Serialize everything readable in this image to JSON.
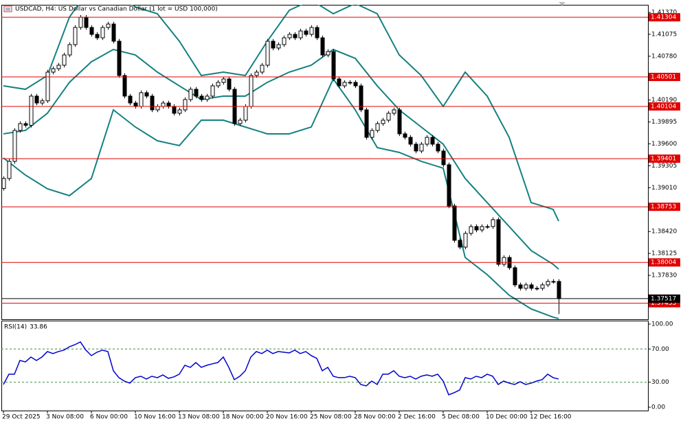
{
  "chart_data": [
    {
      "type": "candlestick",
      "title": "USDCAD, H4:  US Dollar vs Canadian Dollar (1 lot = USD 100,000)",
      "categories": [
        "29 Oct 2025",
        null,
        null,
        null,
        null,
        null,
        null,
        null,
        "3 Nov 08:00",
        null,
        null,
        null,
        null,
        null,
        null,
        null,
        "6 Nov 00:00",
        null,
        null,
        null,
        null,
        null,
        null,
        null,
        "10 Nov 16:00",
        null,
        null,
        null,
        null,
        null,
        null,
        null,
        "13 Nov 08:00",
        null,
        null,
        null,
        null,
        null,
        null,
        null,
        "18 Nov 00:00",
        null,
        null,
        null,
        null,
        null,
        null,
        null,
        "20 Nov 16:00",
        null,
        null,
        null,
        null,
        null,
        null,
        null,
        "25 Nov 08:00",
        null,
        null,
        null,
        null,
        null,
        null,
        null,
        "28 Nov 00:00",
        null,
        null,
        null,
        null,
        null,
        null,
        null,
        "2 Dec 16:00",
        null,
        null,
        null,
        null,
        null,
        null,
        null,
        "5 Dec 08:00",
        null,
        null,
        null,
        null,
        null,
        null,
        null,
        "10 Dec 00:00",
        null,
        null,
        null,
        null,
        null,
        null,
        null,
        "12 Dec 16:00",
        null,
        null,
        null,
        null,
        null
      ],
      "open": [
        1.39,
        1.39134,
        1.39365,
        1.39781,
        1.39873,
        1.3985,
        1.40243,
        1.4015,
        1.4018,
        1.40566,
        1.40612,
        1.40659,
        1.40797,
        1.40936,
        1.41167,
        1.41305,
        1.41167,
        1.41074,
        1.41028,
        1.41167,
        1.41213,
        1.40982,
        1.4052,
        1.40243,
        1.4015,
        1.40104,
        1.40289,
        1.40243,
        1.40058,
        1.40104,
        1.4015,
        1.40104,
        1.40012,
        1.40058,
        1.40197,
        1.40335,
        1.40243,
        1.40197,
        1.40243,
        1.40381,
        1.40428,
        1.40474,
        1.40335,
        1.39873,
        1.39919,
        1.40104,
        1.4052,
        1.40566,
        1.40659,
        1.40982,
        1.4089,
        1.40936,
        1.41028,
        1.41074,
        1.41028,
        1.4112,
        1.41074,
        1.41167,
        1.41028,
        1.40797,
        1.40843,
        1.40474,
        1.40381,
        1.40428,
        1.40428,
        1.40381,
        1.40058,
        1.39688,
        1.39781,
        1.39873,
        1.39919,
        1.40012,
        1.40058,
        1.39735,
        1.39688,
        1.39596,
        1.39504,
        1.39596,
        1.39688,
        1.39596,
        1.39504,
        1.39319,
        1.38764,
        1.38302,
        1.3821,
        1.38395,
        1.38487,
        1.38441,
        1.38487,
        1.38487,
        1.3858,
        1.37979,
        1.38071,
        1.37933,
        1.37702,
        1.37656,
        1.37702,
        1.37656,
        1.37656,
        1.37702,
        1.37748,
        1.37748
      ],
      "high": [
        1.39164,
        1.39395,
        1.39811,
        1.39903,
        1.39903,
        1.40273,
        1.40273,
        1.4021,
        1.40596,
        1.40642,
        1.40689,
        1.40827,
        1.40966,
        1.41197,
        1.41335,
        1.41335,
        1.41197,
        1.41104,
        1.41197,
        1.41243,
        1.41243,
        1.41012,
        1.4055,
        1.40273,
        1.4018,
        1.40319,
        1.40319,
        1.40273,
        1.40134,
        1.4018,
        1.4018,
        1.40134,
        1.40088,
        1.40227,
        1.40365,
        1.40365,
        1.40273,
        1.40273,
        1.40411,
        1.40458,
        1.40504,
        1.40504,
        1.40365,
        1.39949,
        1.40134,
        1.4055,
        1.40596,
        1.40689,
        1.41012,
        1.41012,
        1.40966,
        1.41058,
        1.41104,
        1.41104,
        1.4115,
        1.4115,
        1.41197,
        1.41197,
        1.41058,
        1.40873,
        1.40873,
        1.40504,
        1.40458,
        1.40458,
        1.40458,
        1.40411,
        1.40088,
        1.39811,
        1.39903,
        1.39949,
        1.40042,
        1.40088,
        1.40088,
        1.39765,
        1.39718,
        1.39626,
        1.39626,
        1.39718,
        1.39718,
        1.39626,
        1.39534,
        1.39349,
        1.38794,
        1.38332,
        1.38425,
        1.38517,
        1.38517,
        1.38517,
        1.38517,
        1.3861,
        1.3861,
        1.38101,
        1.38101,
        1.37963,
        1.37732,
        1.37732,
        1.37732,
        1.37686,
        1.37732,
        1.37778,
        1.37778,
        1.37778
      ],
      "low": [
        1.3897,
        1.39104,
        1.39335,
        1.39751,
        1.3982,
        1.3982,
        1.4012,
        1.4012,
        1.4015,
        1.40536,
        1.40582,
        1.40629,
        1.40767,
        1.40906,
        1.41137,
        1.41137,
        1.41044,
        1.40998,
        1.40998,
        1.41137,
        1.40952,
        1.4049,
        1.40213,
        1.4012,
        1.40074,
        1.40074,
        1.40213,
        1.40028,
        1.40028,
        1.40074,
        1.40074,
        1.39982,
        1.39982,
        1.40028,
        1.40167,
        1.40213,
        1.40167,
        1.40167,
        1.40213,
        1.40351,
        1.40398,
        1.40305,
        1.39843,
        1.39843,
        1.39889,
        1.40074,
        1.4049,
        1.40536,
        1.40629,
        1.4086,
        1.4086,
        1.40906,
        1.40998,
        1.40998,
        1.40998,
        1.41044,
        1.41044,
        1.40998,
        1.40767,
        1.40767,
        1.40444,
        1.40351,
        1.40351,
        1.40398,
        1.40351,
        1.40028,
        1.39658,
        1.39658,
        1.39751,
        1.39843,
        1.39889,
        1.39982,
        1.39705,
        1.39658,
        1.39566,
        1.39474,
        1.39474,
        1.39566,
        1.39566,
        1.39474,
        1.39289,
        1.38734,
        1.38272,
        1.3818,
        1.3818,
        1.38365,
        1.38411,
        1.38411,
        1.38457,
        1.38457,
        1.37949,
        1.37949,
        1.37903,
        1.37672,
        1.37626,
        1.37626,
        1.37626,
        1.37626,
        1.37626,
        1.37672,
        1.37718,
        1.3731
      ],
      "close": [
        1.39134,
        1.39365,
        1.39781,
        1.39873,
        1.3985,
        1.40243,
        1.4015,
        1.4018,
        1.40566,
        1.40612,
        1.40659,
        1.40797,
        1.40936,
        1.41167,
        1.41305,
        1.41167,
        1.41074,
        1.41028,
        1.41167,
        1.41213,
        1.40982,
        1.4052,
        1.40243,
        1.4015,
        1.40104,
        1.40289,
        1.40243,
        1.40058,
        1.40104,
        1.4015,
        1.40104,
        1.40012,
        1.40058,
        1.40197,
        1.40335,
        1.40243,
        1.40197,
        1.40243,
        1.40381,
        1.40428,
        1.40474,
        1.40335,
        1.39873,
        1.39919,
        1.40104,
        1.4052,
        1.40566,
        1.40659,
        1.40982,
        1.4089,
        1.40936,
        1.41028,
        1.41074,
        1.41028,
        1.4112,
        1.41074,
        1.41167,
        1.41028,
        1.40797,
        1.40843,
        1.40474,
        1.40381,
        1.40428,
        1.40428,
        1.40381,
        1.40058,
        1.39688,
        1.39781,
        1.39873,
        1.39919,
        1.40012,
        1.40058,
        1.39735,
        1.39688,
        1.39596,
        1.39504,
        1.39596,
        1.39688,
        1.39596,
        1.39504,
        1.39319,
        1.38764,
        1.38302,
        1.3821,
        1.38395,
        1.38487,
        1.38441,
        1.38487,
        1.38487,
        1.3858,
        1.37979,
        1.38071,
        1.37933,
        1.37702,
        1.37656,
        1.37702,
        1.37656,
        1.37656,
        1.37702,
        1.37748,
        1.37748,
        1.37517
      ],
      "colors": {
        "up": "#ffffff",
        "down": "#000000",
        "outline": "#000000"
      },
      "bands": {
        "color": "#138080",
        "x": [
          0,
          4,
          8,
          12,
          16,
          20,
          24,
          28,
          32,
          36,
          40,
          44,
          48,
          52,
          56,
          60,
          64,
          68,
          72,
          76,
          80,
          84,
          88,
          92,
          96,
          100,
          101
        ],
        "upper": [
          1.40381,
          1.40335,
          1.4052,
          1.41305,
          1.41721,
          1.41629,
          1.41444,
          1.41352,
          1.40982,
          1.4052,
          1.40566,
          1.4052,
          1.40982,
          1.41398,
          1.41536,
          1.41352,
          1.4149,
          1.41352,
          1.40797,
          1.4052,
          1.40104,
          1.40566,
          1.40243,
          1.39688,
          1.3881,
          1.38718,
          1.38561
        ],
        "middle": [
          1.39735,
          1.39781,
          1.40012,
          1.40428,
          1.40705,
          1.40871,
          1.40797,
          1.40566,
          1.40381,
          1.40197,
          1.40243,
          1.40243,
          1.40428,
          1.40566,
          1.40659,
          1.40871,
          1.40751,
          1.40381,
          1.40058,
          1.39827,
          1.39596,
          1.39134,
          1.3881,
          1.38487,
          1.38164,
          1.37979,
          1.37914
        ],
        "lower": [
          1.39411,
          1.3918,
          1.38995,
          1.38903,
          1.39134,
          1.40058,
          1.39827,
          1.39642,
          1.39577,
          1.39919,
          1.39919,
          1.39827,
          1.39735,
          1.39735,
          1.39827,
          1.40474,
          1.40058,
          1.3955,
          1.39485,
          1.39365,
          1.39273,
          1.38071,
          1.3784,
          1.37563,
          1.37378,
          1.37267,
          1.37249
        ]
      },
      "levels": {
        "color": "#e00000",
        "values": [
          1.41304,
          1.40501,
          1.40104,
          1.39401,
          1.38753,
          1.38004,
          1.37455
        ]
      },
      "current_price": {
        "color": "#000000",
        "value": 1.37517
      },
      "ylim": [
        1.37239,
        1.41472
      ],
      "yticks": [
        {
          "value": 1.4137,
          "label": "1.41370"
        },
        1.41075,
        {
          "value": 1.4078,
          "label": "1.40780"
        },
        {
          "value": 1.4019,
          "label": "1.40190"
        },
        1.39895,
        {
          "value": 1.396,
          "label": "1.39600"
        },
        1.39305,
        {
          "value": 1.3901,
          "label": "1.39010"
        },
        {
          "value": 1.3842,
          "label": "1.38420"
        },
        1.38125,
        {
          "value": 1.3783,
          "label": "1.37830"
        }
      ]
    },
    {
      "type": "line",
      "title": "RSI(14)",
      "color": "#0000cc",
      "values": [
        27.3,
        39.7,
        39.7,
        56.2,
        54.5,
        60.3,
        56.2,
        60.3,
        66.9,
        64.5,
        66.9,
        68.6,
        72.7,
        75.2,
        78.5,
        68.6,
        62.0,
        66.1,
        68.6,
        66.9,
        43.8,
        35.5,
        31.4,
        28.9,
        35.5,
        37.2,
        33.9,
        37.2,
        35.5,
        38.8,
        34.7,
        36.4,
        39.7,
        50.4,
        47.9,
        53.7,
        47.9,
        50.4,
        52.1,
        53.7,
        60.3,
        47.9,
        33.1,
        37.2,
        43.8,
        60.3,
        66.9,
        64.5,
        68.6,
        64.5,
        66.9,
        66.1,
        65.3,
        68.6,
        64.5,
        66.9,
        62.0,
        58.7,
        43.8,
        47.9,
        37.2,
        35.5,
        35.5,
        37.2,
        35.5,
        27.3,
        25.6,
        31.4,
        27.3,
        39.7,
        39.7,
        43.8,
        37.2,
        35.5,
        37.2,
        33.9,
        37.2,
        38.8,
        37.2,
        39.7,
        31.4,
        14.9,
        17.4,
        20.7,
        35.5,
        33.9,
        37.2,
        35.5,
        39.7,
        37.2,
        27.3,
        31.4,
        28.9,
        27.3,
        30.6,
        27.3,
        28.9,
        31.4,
        33.1,
        39.7,
        35.5,
        33.86
      ],
      "ylim": [
        -4.1,
        104.1
      ],
      "yticks": [
        {
          "value": 100,
          "label": "100.00"
        },
        {
          "value": 70,
          "label": "70.00"
        },
        {
          "value": 30,
          "label": "30.00"
        },
        {
          "value": 0,
          "label": "0.00"
        }
      ],
      "inner_tick_lines": "dashed"
    }
  ]
}
